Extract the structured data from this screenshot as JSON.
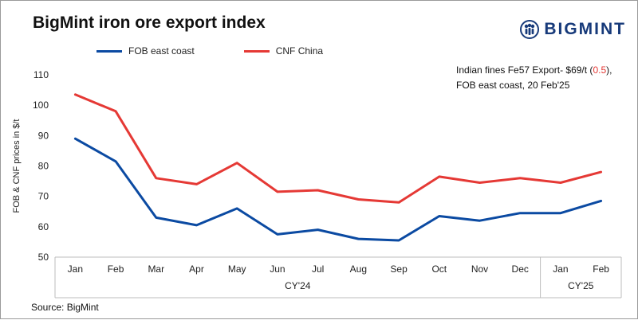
{
  "header": {
    "title": "BigMint iron ore export index",
    "logo_text": "BIGMINT",
    "logo_icon": "bigmint-people-globe-logo"
  },
  "annotation": {
    "line1_prefix": "Indian fines Fe57 Export- $69/t (",
    "line1_change": "0.5",
    "line1_suffix": "),",
    "line2": "FOB east coast, 20 Feb'25"
  },
  "footer": {
    "source": "Source: BigMint"
  },
  "colors": {
    "fob": "#0b4aa2",
    "cnf": "#e53935",
    "axis": "#bdbdbd",
    "logo": "#173a7a"
  },
  "chart_data": {
    "type": "line",
    "categories": [
      "Jan",
      "Feb",
      "Mar",
      "Apr",
      "May",
      "Jun",
      "Jul",
      "Aug",
      "Sep",
      "Oct",
      "Nov",
      "Dec",
      "Jan",
      "Feb"
    ],
    "groups": [
      {
        "label": "CY'24",
        "from": 0,
        "to": 11
      },
      {
        "label": "CY'25",
        "from": 12,
        "to": 13
      }
    ],
    "series": [
      {
        "name": "FOB east coast",
        "color": "#0b4aa2",
        "values": [
          89,
          81.5,
          63,
          60.5,
          66,
          57.5,
          59,
          56,
          55.5,
          63.5,
          62,
          64.5,
          64.5,
          68.5
        ]
      },
      {
        "name": "CNF China",
        "color": "#e53935",
        "values": [
          103.5,
          98,
          76,
          74,
          81,
          71.5,
          72,
          69,
          68,
          76.5,
          74.5,
          76,
          74.5,
          78
        ]
      }
    ],
    "ylabel": "FOB & CNF prices in $/t",
    "ylim": [
      50,
      110
    ],
    "yticks": [
      50,
      60,
      70,
      80,
      90,
      100,
      110
    ],
    "legend_position": "top-left",
    "grid": false
  }
}
